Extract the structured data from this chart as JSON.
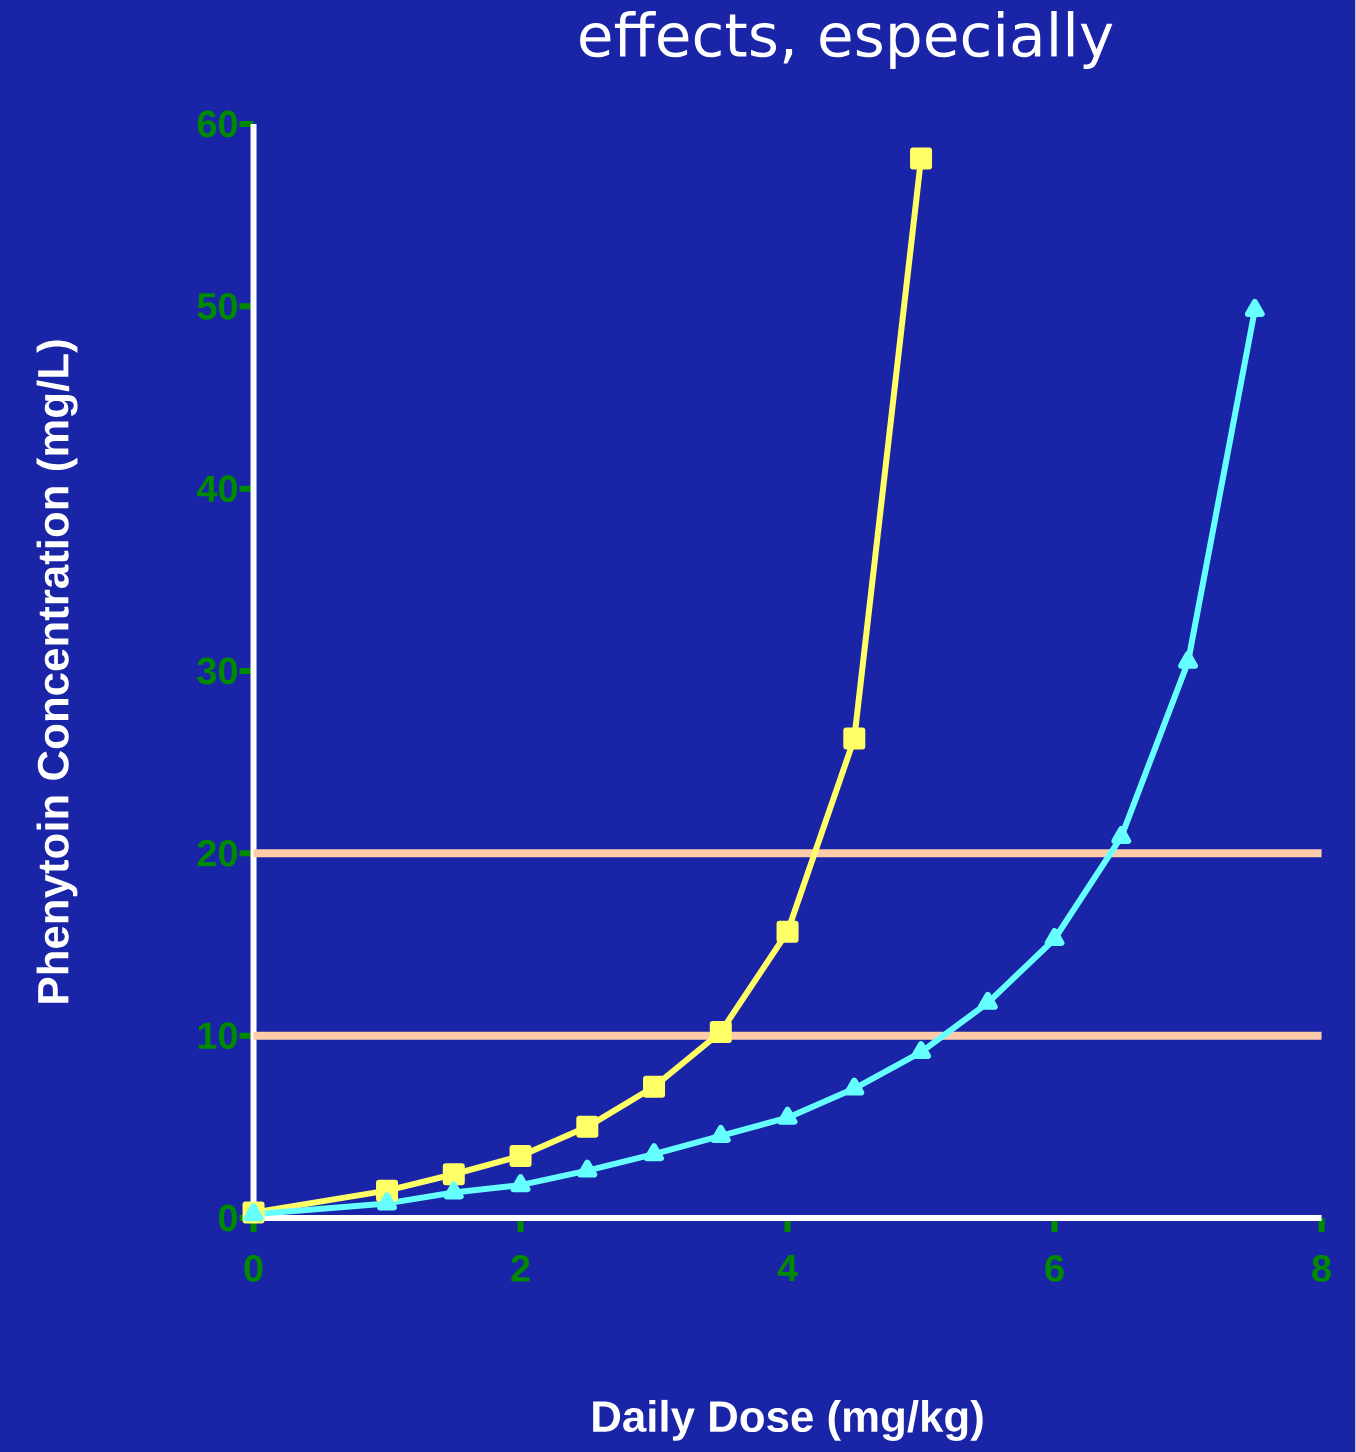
{
  "chart_data": {
    "type": "line",
    "title": "effects, especially",
    "xlabel": "Daily Dose (mg/kg)",
    "ylabel": "Phenytoin Concentration (mg/L)",
    "xlim": [
      0,
      8
    ],
    "ylim": [
      0,
      60
    ],
    "xticks": [
      0,
      2,
      4,
      6,
      8
    ],
    "yticks": [
      0,
      10,
      20,
      30,
      40,
      50,
      60
    ],
    "grid": false,
    "series": [
      {
        "color": "#ffff66",
        "marker": "square",
        "x": [
          0,
          1,
          1.5,
          2,
          2.5,
          3,
          3.5,
          4,
          4.5,
          5
        ],
        "values": [
          0.3,
          1.5,
          2.4,
          3.4,
          5.0,
          7.2,
          10.2,
          15.7,
          26.3,
          58.1
        ]
      },
      {
        "color": "#66ffff",
        "marker": "triangle",
        "x": [
          0,
          1,
          1.5,
          2,
          2.5,
          3,
          3.5,
          4,
          4.5,
          5,
          5.5,
          6,
          6.5,
          7,
          7.5
        ],
        "values": [
          0.2,
          0.8,
          1.4,
          1.8,
          2.6,
          3.5,
          4.5,
          5.5,
          7.1,
          9.1,
          11.8,
          15.3,
          20.9,
          30.5,
          49.8
        ]
      }
    ],
    "ref_lines": [
      {
        "axis": "y",
        "value": 10,
        "color": "#ffccaa"
      },
      {
        "axis": "y",
        "value": 20,
        "color": "#ffccaa"
      }
    ]
  }
}
